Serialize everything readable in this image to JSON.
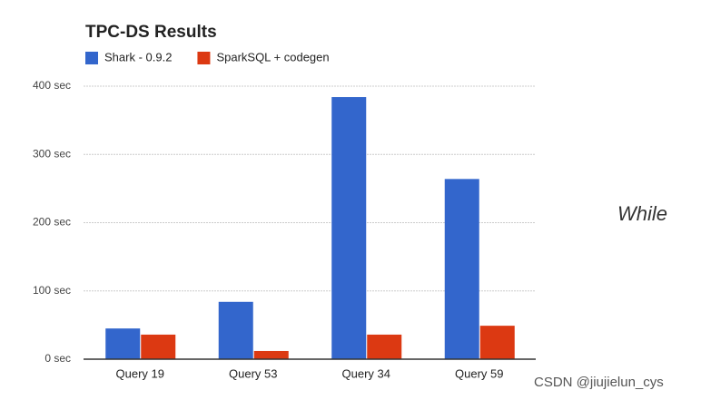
{
  "chart_data": {
    "type": "bar",
    "title": "TPC-DS Results",
    "categories": [
      "Query 19",
      "Query 53",
      "Query 34",
      "Query 59"
    ],
    "series": [
      {
        "name": "Shark - 0.9.2",
        "color": "#3366cc",
        "values": [
          45,
          84,
          384,
          264
        ]
      },
      {
        "name": "SparkSQL + codegen",
        "color": "#dc3912",
        "values": [
          36,
          12,
          36,
          49
        ]
      }
    ],
    "ylim": [
      0,
      400
    ],
    "yticks": [
      {
        "value": 0,
        "label": "0 sec"
      },
      {
        "value": 100,
        "label": "100 sec"
      },
      {
        "value": 200,
        "label": "200 sec"
      },
      {
        "value": 300,
        "label": "300 sec"
      },
      {
        "value": 400,
        "label": "400 sec"
      }
    ],
    "grid": true,
    "legend": "top",
    "annotations": [
      "While",
      "CSDN @jiujielun_cys"
    ]
  }
}
